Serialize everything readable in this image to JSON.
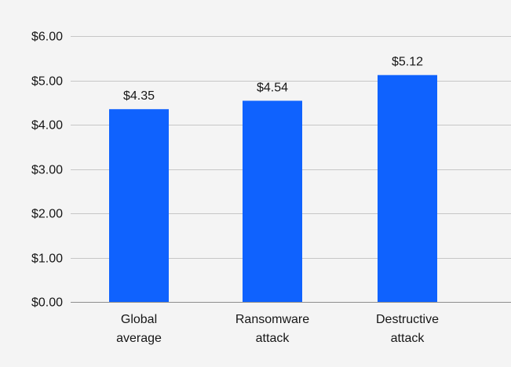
{
  "chart_data": {
    "type": "bar",
    "title": "",
    "xlabel": "",
    "ylabel": "",
    "categories": [
      "Global average",
      "Ransomware attack",
      "Destructive attack"
    ],
    "category_lines": [
      [
        "Global",
        "average"
      ],
      [
        "Ransomware",
        "attack"
      ],
      [
        "Destructive",
        "attack"
      ]
    ],
    "values": [
      4.35,
      4.54,
      5.12
    ],
    "value_labels": [
      "$4.35",
      "$4.54",
      "$5.12"
    ],
    "ylim": [
      0,
      6
    ],
    "yticks": [
      0,
      1,
      2,
      3,
      4,
      5,
      6
    ],
    "ytick_labels": [
      "$0.00",
      "$1.00",
      "$2.00",
      "$3.00",
      "$4.00",
      "$5.00",
      "$6.00"
    ],
    "grid": true,
    "legend": "none",
    "bar_color": "#0f62fe",
    "grid_color": "#c6c6c6",
    "background_color": "#f4f4f4"
  }
}
